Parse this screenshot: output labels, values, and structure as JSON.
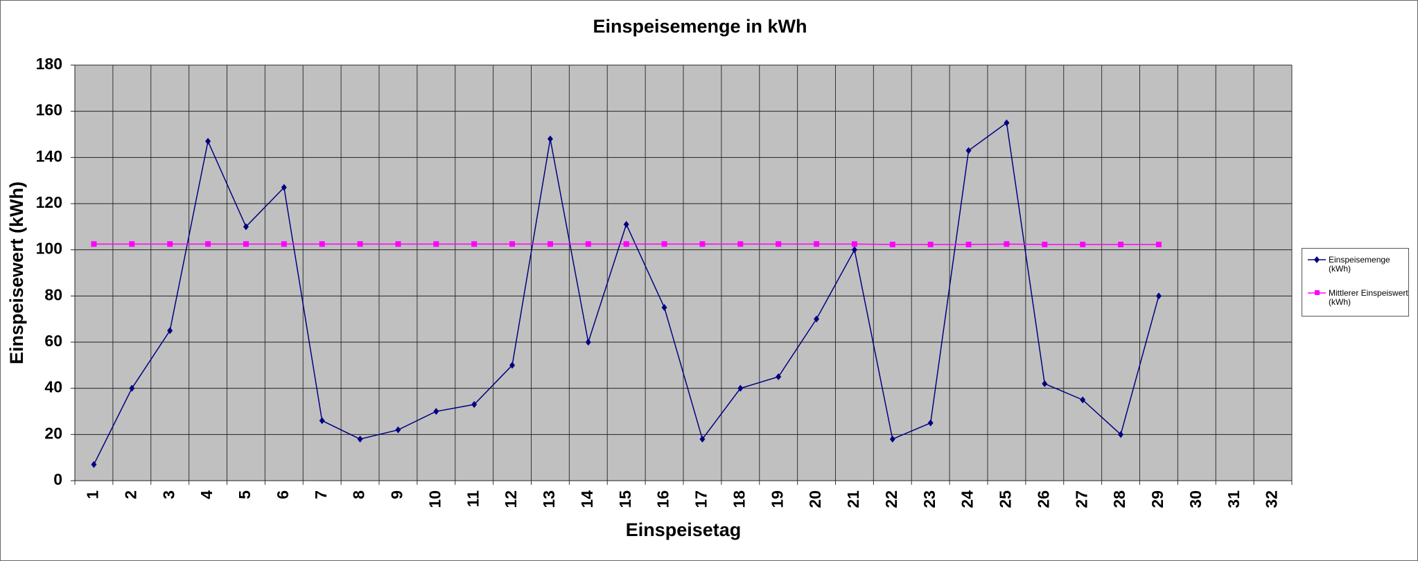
{
  "chart_data": {
    "type": "line",
    "title": "Einspeisemenge in kWh",
    "x_label": "Einspeisetag",
    "y_label": "Einspeisewert  (kWh)",
    "categories": [
      "1",
      "2",
      "3",
      "4",
      "5",
      "6",
      "7",
      "8",
      "9",
      "10",
      "11",
      "12",
      "13",
      "14",
      "15",
      "16",
      "17",
      "18",
      "19",
      "20",
      "21",
      "22",
      "23",
      "24",
      "25",
      "26",
      "27",
      "28",
      "29",
      "30",
      "31",
      "32"
    ],
    "series": [
      {
        "name": "Einspeisemenge (kWh)",
        "color": "#000080",
        "marker": "diamond",
        "values": [
          7,
          40,
          65,
          147,
          110,
          127,
          26,
          18,
          22,
          30,
          33,
          50,
          148,
          60,
          111,
          75,
          18,
          40,
          45,
          70,
          100,
          18,
          25,
          143,
          155,
          42,
          35,
          20,
          80,
          null,
          null,
          null
        ]
      },
      {
        "name": "Mittlerer Einspeiswert (kWh)",
        "color": "#ff00ff",
        "marker": "square",
        "values": [
          102.5,
          102.5,
          102.5,
          102.5,
          102.5,
          102.5,
          102.5,
          102.5,
          102.5,
          102.5,
          102.5,
          102.5,
          102.5,
          102.5,
          102.5,
          102.5,
          102.5,
          102.5,
          102.5,
          102.5,
          102.5,
          102.3,
          102.3,
          102.3,
          102.5,
          102.3,
          102.3,
          102.3,
          102.3,
          null,
          null,
          null
        ]
      }
    ],
    "ylim": [
      0,
      180
    ],
    "yticks": [
      0,
      20,
      40,
      60,
      80,
      100,
      120,
      140,
      160,
      180
    ],
    "grid": true,
    "plot_background": "#c0c0c0",
    "legend": "right"
  }
}
